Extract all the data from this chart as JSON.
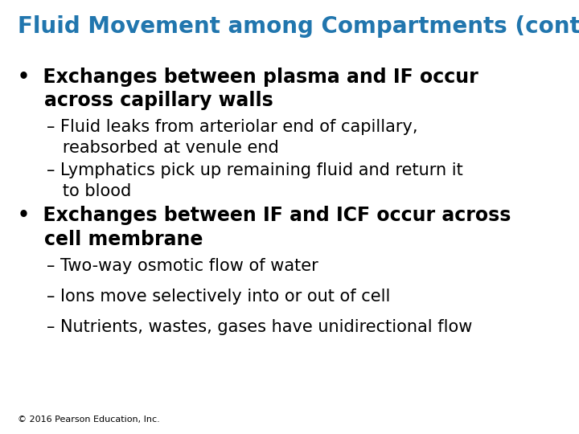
{
  "title": "Fluid Movement among Compartments (cont.)",
  "title_color": "#2176AE",
  "background_color": "#FFFFFF",
  "title_fontsize": 20,
  "bullet1_line1": "•  Exchanges between plasma and IF occur",
  "bullet1_line2": "    across capillary walls",
  "bullet_fontsize": 17,
  "sub1a_line1": "– Fluid leaks from arteriolar end of capillary,",
  "sub1a_line2": "   reabsorbed at venule end",
  "sub1b_line1": "– Lymphatics pick up remaining fluid and return it",
  "sub1b_line2": "   to blood",
  "sub_fontsize": 15,
  "bullet2_line1": "•  Exchanges between IF and ICF occur across",
  "bullet2_line2": "    cell membrane",
  "sub2a": "– Two-way osmotic flow of water",
  "sub2b": "– Ions move selectively into or out of cell",
  "sub2c": "– Nutrients, wastes, gases have unidirectional flow",
  "footer": "© 2016 Pearson Education, Inc.",
  "footer_fontsize": 8,
  "text_color": "#000000",
  "indent_bullet": 0.03,
  "indent_sub": 0.08
}
